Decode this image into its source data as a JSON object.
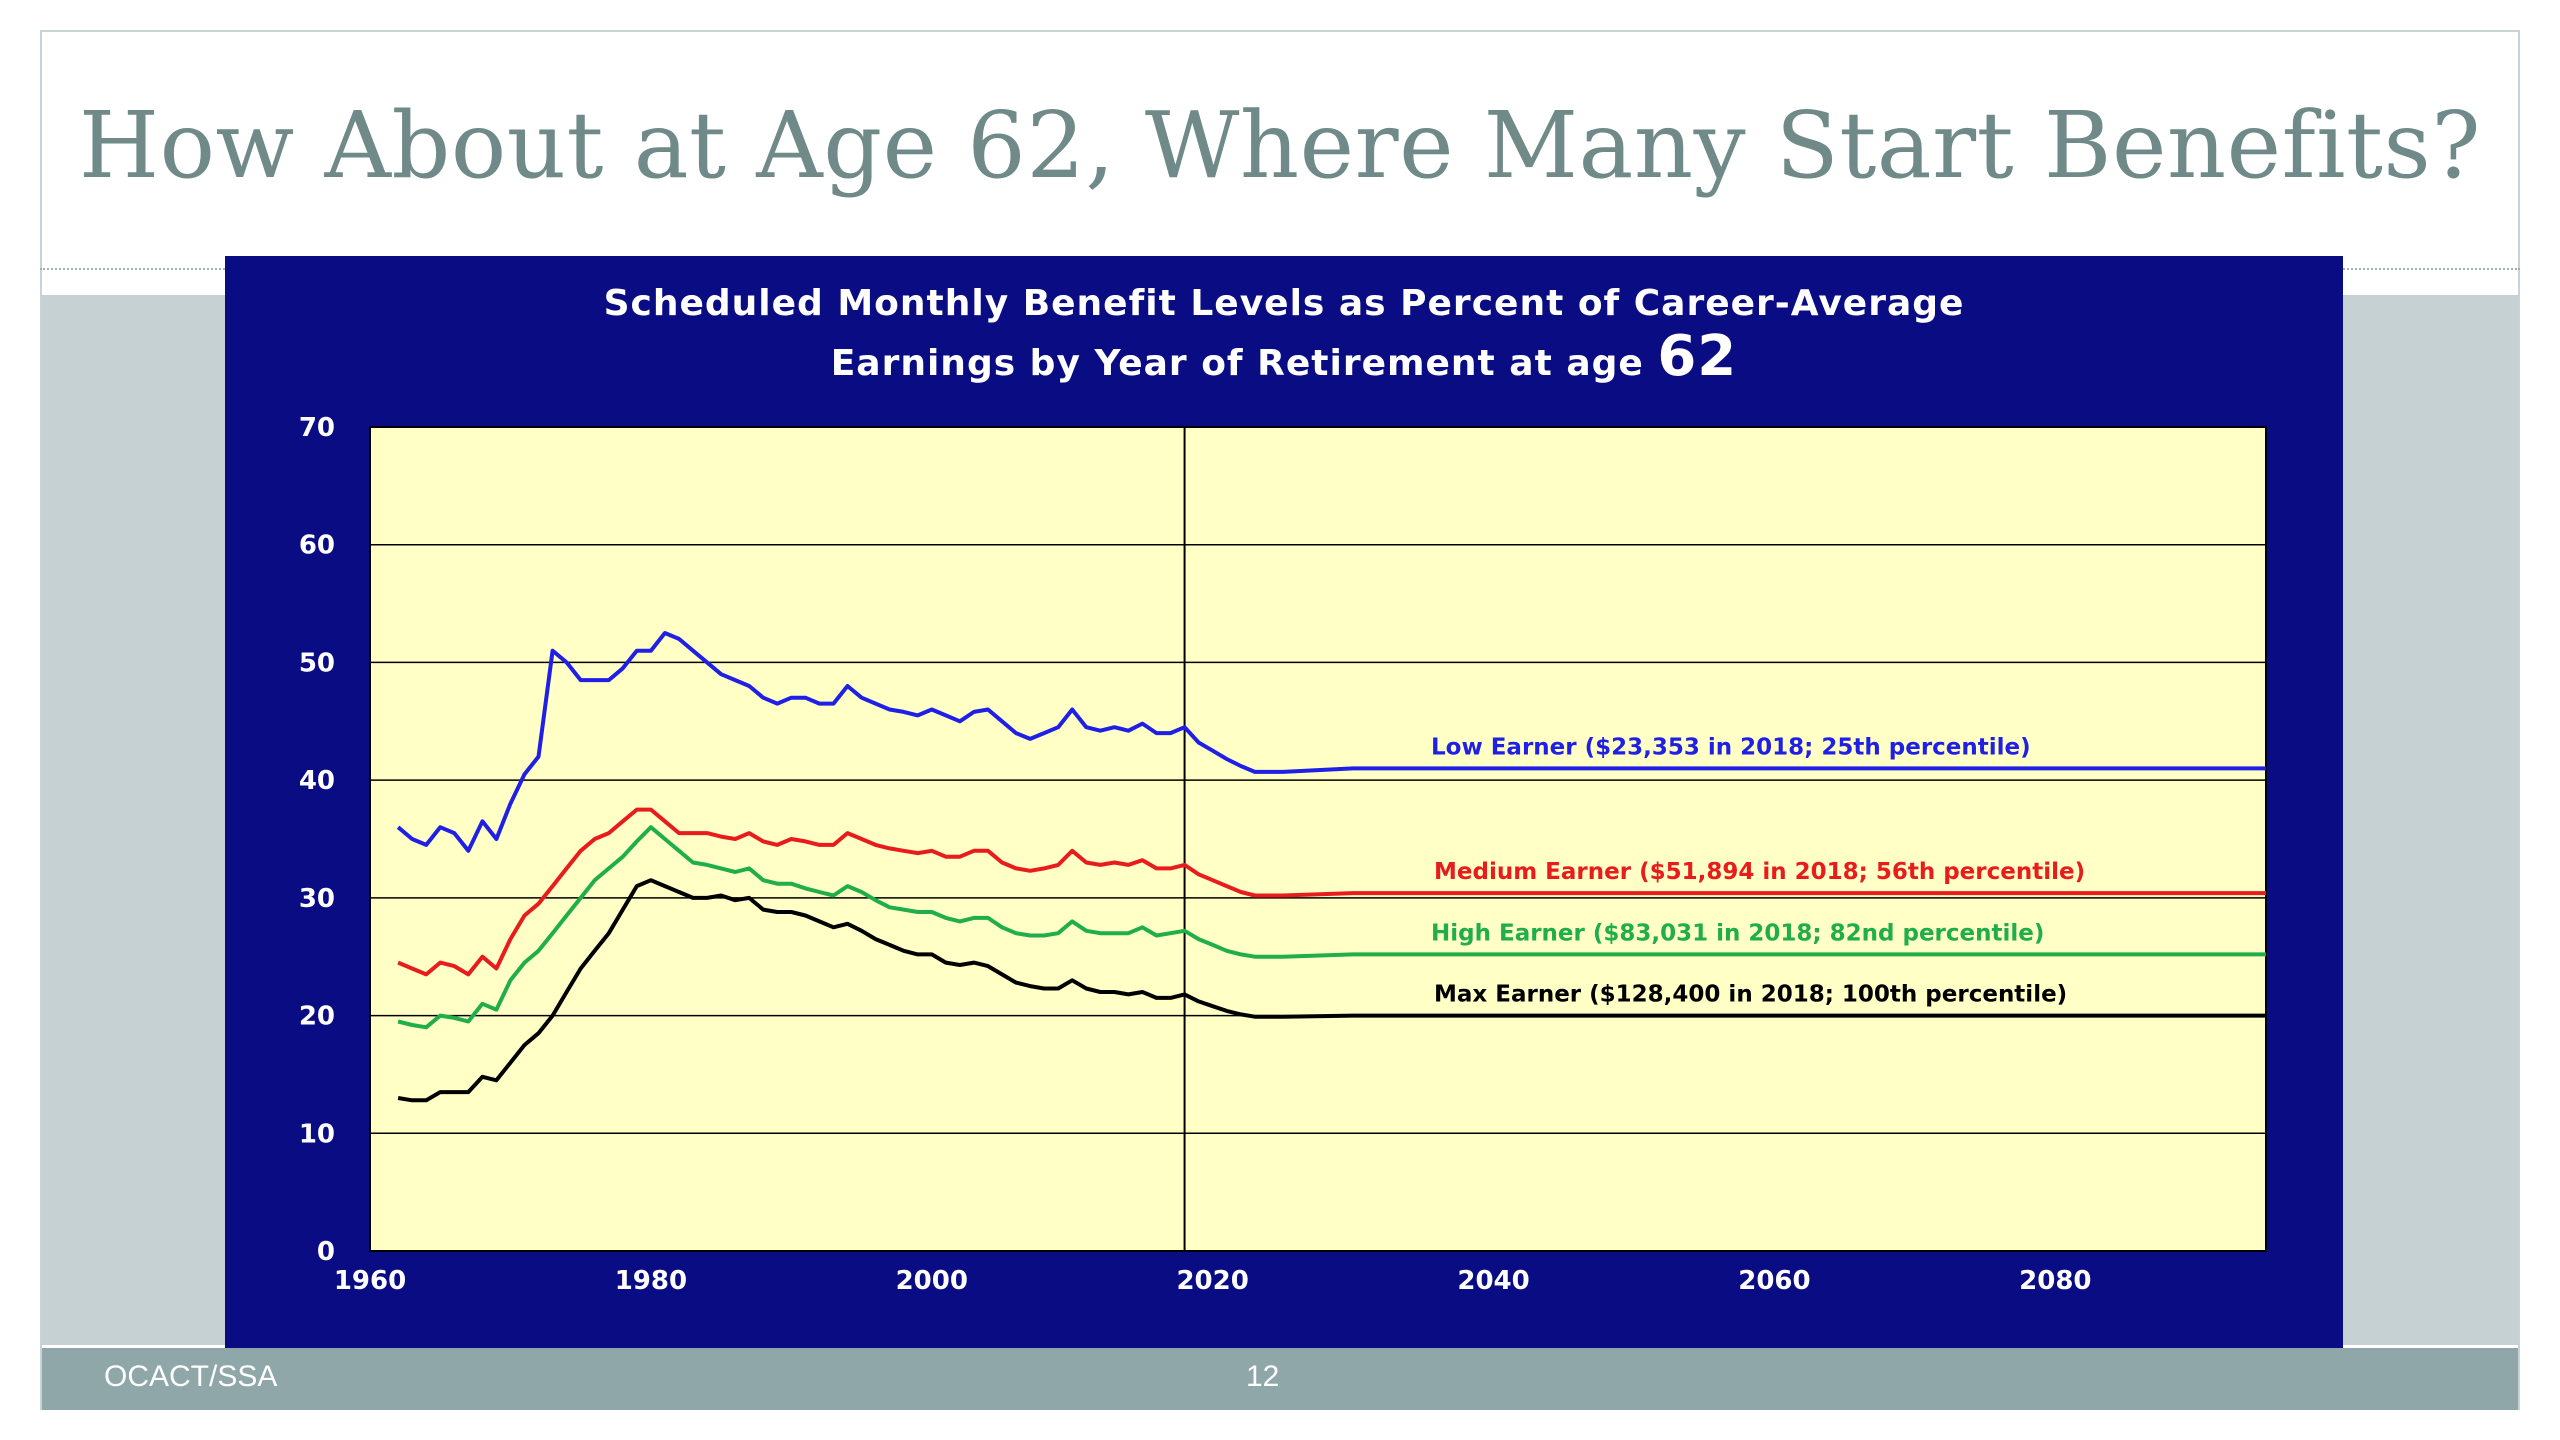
{
  "slide": {
    "title": "How About at Age 62, Where Many Start Benefits?",
    "footer_left": "OCACT/SSA",
    "page_number": "12"
  },
  "colors": {
    "panel": "#0a0c84",
    "plot_area": "#ffffc6",
    "low": "#1f1fe6",
    "medium": "#e81c1c",
    "high": "#1fae4a",
    "max": "#000000"
  },
  "chart_data": {
    "type": "line",
    "title_line1": "Scheduled Monthly Benefit Levels as Percent of Career-Average",
    "title_line2": "Earnings by Year of Retirement at age",
    "title_age": "62",
    "xlabel": "",
    "ylabel": "",
    "xlim": [
      1960,
      2095
    ],
    "ylim": [
      0,
      70
    ],
    "x_ticks": [
      1960,
      1980,
      2000,
      2020,
      2040,
      2060,
      2080
    ],
    "y_ticks": [
      0,
      10,
      20,
      30,
      40,
      50,
      60,
      70
    ],
    "grid": "horizontal",
    "reference_year": 2018,
    "series": [
      {
        "key": "low",
        "name": "Low Earner ($23,353 in 2018; 25th percentile)",
        "points": [
          [
            1962,
            36
          ],
          [
            1963,
            35
          ],
          [
            1964,
            34.5
          ],
          [
            1965,
            36
          ],
          [
            1966,
            35.5
          ],
          [
            1967,
            34
          ],
          [
            1968,
            36.5
          ],
          [
            1969,
            35
          ],
          [
            1970,
            38
          ],
          [
            1971,
            40.5
          ],
          [
            1972,
            42
          ],
          [
            1973,
            51
          ],
          [
            1974,
            50
          ],
          [
            1975,
            48.5
          ],
          [
            1976,
            48.5
          ],
          [
            1977,
            48.5
          ],
          [
            1978,
            49.5
          ],
          [
            1979,
            51
          ],
          [
            1980,
            51
          ],
          [
            1981,
            52.5
          ],
          [
            1982,
            52
          ],
          [
            1983,
            51
          ],
          [
            1984,
            50
          ],
          [
            1985,
            49
          ],
          [
            1986,
            48.5
          ],
          [
            1987,
            48
          ],
          [
            1988,
            47
          ],
          [
            1989,
            46.5
          ],
          [
            1990,
            47
          ],
          [
            1991,
            47
          ],
          [
            1992,
            46.5
          ],
          [
            1993,
            46.5
          ],
          [
            1994,
            48
          ],
          [
            1995,
            47
          ],
          [
            1996,
            46.5
          ],
          [
            1997,
            46
          ],
          [
            1998,
            45.8
          ],
          [
            1999,
            45.5
          ],
          [
            2000,
            46
          ],
          [
            2001,
            45.5
          ],
          [
            2002,
            45
          ],
          [
            2003,
            45.8
          ],
          [
            2004,
            46
          ],
          [
            2005,
            45
          ],
          [
            2006,
            44
          ],
          [
            2007,
            43.5
          ],
          [
            2008,
            44
          ],
          [
            2009,
            44.5
          ],
          [
            2010,
            46
          ],
          [
            2011,
            44.5
          ],
          [
            2012,
            44.2
          ],
          [
            2013,
            44.5
          ],
          [
            2014,
            44.2
          ],
          [
            2015,
            44.8
          ],
          [
            2016,
            44
          ],
          [
            2017,
            44
          ],
          [
            2018,
            44.5
          ],
          [
            2019,
            43.2
          ],
          [
            2020,
            42.5
          ],
          [
            2021,
            41.8
          ],
          [
            2022,
            41.2
          ],
          [
            2023,
            40.7
          ],
          [
            2025,
            40.7
          ],
          [
            2030,
            41
          ],
          [
            2095,
            41
          ]
        ]
      },
      {
        "key": "medium",
        "name": "Medium Earner ($51,894 in 2018; 56th percentile)",
        "points": [
          [
            1962,
            24.5
          ],
          [
            1963,
            24
          ],
          [
            1964,
            23.5
          ],
          [
            1965,
            24.5
          ],
          [
            1966,
            24.2
          ],
          [
            1967,
            23.5
          ],
          [
            1968,
            25
          ],
          [
            1969,
            24
          ],
          [
            1970,
            26.5
          ],
          [
            1971,
            28.5
          ],
          [
            1972,
            29.5
          ],
          [
            1973,
            31
          ],
          [
            1974,
            32.5
          ],
          [
            1975,
            34
          ],
          [
            1976,
            35
          ],
          [
            1977,
            35.5
          ],
          [
            1978,
            36.5
          ],
          [
            1979,
            37.5
          ],
          [
            1980,
            37.5
          ],
          [
            1981,
            36.5
          ],
          [
            1982,
            35.5
          ],
          [
            1983,
            35.5
          ],
          [
            1984,
            35.5
          ],
          [
            1985,
            35.2
          ],
          [
            1986,
            35
          ],
          [
            1987,
            35.5
          ],
          [
            1988,
            34.8
          ],
          [
            1989,
            34.5
          ],
          [
            1990,
            35
          ],
          [
            1991,
            34.8
          ],
          [
            1992,
            34.5
          ],
          [
            1993,
            34.5
          ],
          [
            1994,
            35.5
          ],
          [
            1995,
            35
          ],
          [
            1996,
            34.5
          ],
          [
            1997,
            34.2
          ],
          [
            1998,
            34
          ],
          [
            1999,
            33.8
          ],
          [
            2000,
            34
          ],
          [
            2001,
            33.5
          ],
          [
            2002,
            33.5
          ],
          [
            2003,
            34
          ],
          [
            2004,
            34
          ],
          [
            2005,
            33
          ],
          [
            2006,
            32.5
          ],
          [
            2007,
            32.3
          ],
          [
            2008,
            32.5
          ],
          [
            2009,
            32.8
          ],
          [
            2010,
            34
          ],
          [
            2011,
            33
          ],
          [
            2012,
            32.8
          ],
          [
            2013,
            33
          ],
          [
            2014,
            32.8
          ],
          [
            2015,
            33.2
          ],
          [
            2016,
            32.5
          ],
          [
            2017,
            32.5
          ],
          [
            2018,
            32.8
          ],
          [
            2019,
            32
          ],
          [
            2020,
            31.5
          ],
          [
            2021,
            31
          ],
          [
            2022,
            30.5
          ],
          [
            2023,
            30.2
          ],
          [
            2025,
            30.2
          ],
          [
            2030,
            30.4
          ],
          [
            2095,
            30.4
          ]
        ]
      },
      {
        "key": "high",
        "name": "High Earner ($83,031 in 2018; 82nd percentile)",
        "points": [
          [
            1962,
            19.5
          ],
          [
            1963,
            19.2
          ],
          [
            1964,
            19
          ],
          [
            1965,
            20
          ],
          [
            1966,
            19.8
          ],
          [
            1967,
            19.5
          ],
          [
            1968,
            21
          ],
          [
            1969,
            20.5
          ],
          [
            1970,
            23
          ],
          [
            1971,
            24.5
          ],
          [
            1972,
            25.5
          ],
          [
            1973,
            27
          ],
          [
            1974,
            28.5
          ],
          [
            1975,
            30
          ],
          [
            1976,
            31.5
          ],
          [
            1977,
            32.5
          ],
          [
            1978,
            33.5
          ],
          [
            1979,
            34.8
          ],
          [
            1980,
            36
          ],
          [
            1981,
            35
          ],
          [
            1982,
            34
          ],
          [
            1983,
            33
          ],
          [
            1984,
            32.8
          ],
          [
            1985,
            32.5
          ],
          [
            1986,
            32.2
          ],
          [
            1987,
            32.5
          ],
          [
            1988,
            31.5
          ],
          [
            1989,
            31.2
          ],
          [
            1990,
            31.2
          ],
          [
            1991,
            30.8
          ],
          [
            1992,
            30.5
          ],
          [
            1993,
            30.2
          ],
          [
            1994,
            31
          ],
          [
            1995,
            30.5
          ],
          [
            1996,
            29.8
          ],
          [
            1997,
            29.2
          ],
          [
            1998,
            29
          ],
          [
            1999,
            28.8
          ],
          [
            2000,
            28.8
          ],
          [
            2001,
            28.3
          ],
          [
            2002,
            28
          ],
          [
            2003,
            28.3
          ],
          [
            2004,
            28.3
          ],
          [
            2005,
            27.5
          ],
          [
            2006,
            27
          ],
          [
            2007,
            26.8
          ],
          [
            2008,
            26.8
          ],
          [
            2009,
            27
          ],
          [
            2010,
            28
          ],
          [
            2011,
            27.2
          ],
          [
            2012,
            27
          ],
          [
            2013,
            27
          ],
          [
            2014,
            27
          ],
          [
            2015,
            27.5
          ],
          [
            2016,
            26.8
          ],
          [
            2017,
            27
          ],
          [
            2018,
            27.2
          ],
          [
            2019,
            26.5
          ],
          [
            2020,
            26
          ],
          [
            2021,
            25.5
          ],
          [
            2022,
            25.2
          ],
          [
            2023,
            25
          ],
          [
            2025,
            25
          ],
          [
            2030,
            25.2
          ],
          [
            2095,
            25.2
          ]
        ]
      },
      {
        "key": "max",
        "name": "Max Earner ($128,400 in 2018; 100th percentile)",
        "points": [
          [
            1962,
            13
          ],
          [
            1963,
            12.8
          ],
          [
            1964,
            12.8
          ],
          [
            1965,
            13.5
          ],
          [
            1966,
            13.5
          ],
          [
            1967,
            13.5
          ],
          [
            1968,
            14.8
          ],
          [
            1969,
            14.5
          ],
          [
            1970,
            16
          ],
          [
            1971,
            17.5
          ],
          [
            1972,
            18.5
          ],
          [
            1973,
            20
          ],
          [
            1974,
            22
          ],
          [
            1975,
            24
          ],
          [
            1976,
            25.5
          ],
          [
            1977,
            27
          ],
          [
            1978,
            29
          ],
          [
            1979,
            31
          ],
          [
            1980,
            31.5
          ],
          [
            1981,
            31
          ],
          [
            1982,
            30.5
          ],
          [
            1983,
            30
          ],
          [
            1984,
            30
          ],
          [
            1985,
            30.2
          ],
          [
            1986,
            29.8
          ],
          [
            1987,
            30
          ],
          [
            1988,
            29
          ],
          [
            1989,
            28.8
          ],
          [
            1990,
            28.8
          ],
          [
            1991,
            28.5
          ],
          [
            1992,
            28
          ],
          [
            1993,
            27.5
          ],
          [
            1994,
            27.8
          ],
          [
            1995,
            27.2
          ],
          [
            1996,
            26.5
          ],
          [
            1997,
            26
          ],
          [
            1998,
            25.5
          ],
          [
            1999,
            25.2
          ],
          [
            2000,
            25.2
          ],
          [
            2001,
            24.5
          ],
          [
            2002,
            24.3
          ],
          [
            2003,
            24.5
          ],
          [
            2004,
            24.2
          ],
          [
            2005,
            23.5
          ],
          [
            2006,
            22.8
          ],
          [
            2007,
            22.5
          ],
          [
            2008,
            22.3
          ],
          [
            2009,
            22.3
          ],
          [
            2010,
            23
          ],
          [
            2011,
            22.3
          ],
          [
            2012,
            22
          ],
          [
            2013,
            22
          ],
          [
            2014,
            21.8
          ],
          [
            2015,
            22
          ],
          [
            2016,
            21.5
          ],
          [
            2017,
            21.5
          ],
          [
            2018,
            21.8
          ],
          [
            2019,
            21.2
          ],
          [
            2020,
            20.8
          ],
          [
            2021,
            20.4
          ],
          [
            2022,
            20.1
          ],
          [
            2023,
            19.9
          ],
          [
            2025,
            19.9
          ],
          [
            2030,
            20
          ],
          [
            2095,
            20
          ]
        ]
      }
    ]
  }
}
